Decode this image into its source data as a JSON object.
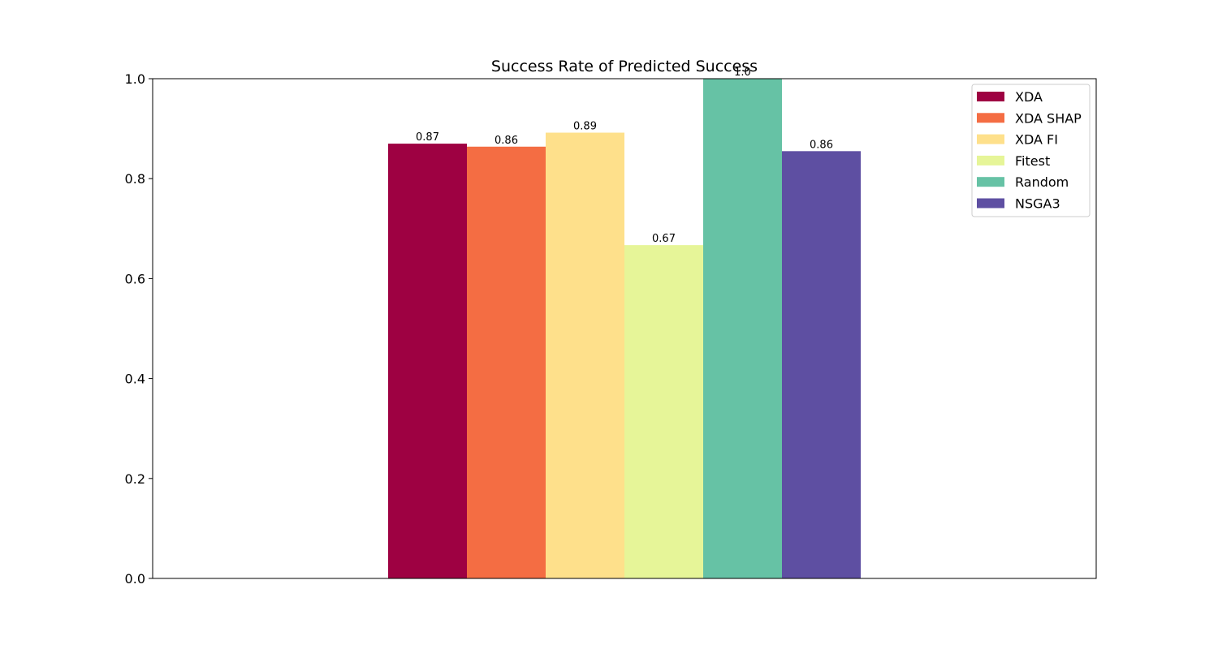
{
  "chart_data": {
    "type": "bar",
    "title": "Success Rate of Predicted Success",
    "xlabel": "",
    "ylabel": "",
    "ylim": [
      0,
      1.0
    ],
    "yticks": [
      0.0,
      0.2,
      0.4,
      0.6,
      0.8,
      1.0
    ],
    "ytick_labels": [
      "0.0",
      "0.2",
      "0.4",
      "0.6",
      "0.8",
      "1.0"
    ],
    "grid": false,
    "legend_position": "top-right",
    "series": [
      {
        "name": "XDA",
        "value": 0.87,
        "label": "0.87",
        "color": "#9e0142"
      },
      {
        "name": "XDA SHAP",
        "value": 0.864,
        "label": "0.86",
        "color": "#f46d43"
      },
      {
        "name": "XDA FI",
        "value": 0.892,
        "label": "0.89",
        "color": "#fee08b"
      },
      {
        "name": "Fitest",
        "value": 0.667,
        "label": "0.67",
        "color": "#e6f598"
      },
      {
        "name": "Random",
        "value": 1.0,
        "label": "1.0",
        "color": "#66c2a5"
      },
      {
        "name": "NSGA3",
        "value": 0.855,
        "label": "0.86",
        "color": "#5e4fa2"
      }
    ]
  }
}
